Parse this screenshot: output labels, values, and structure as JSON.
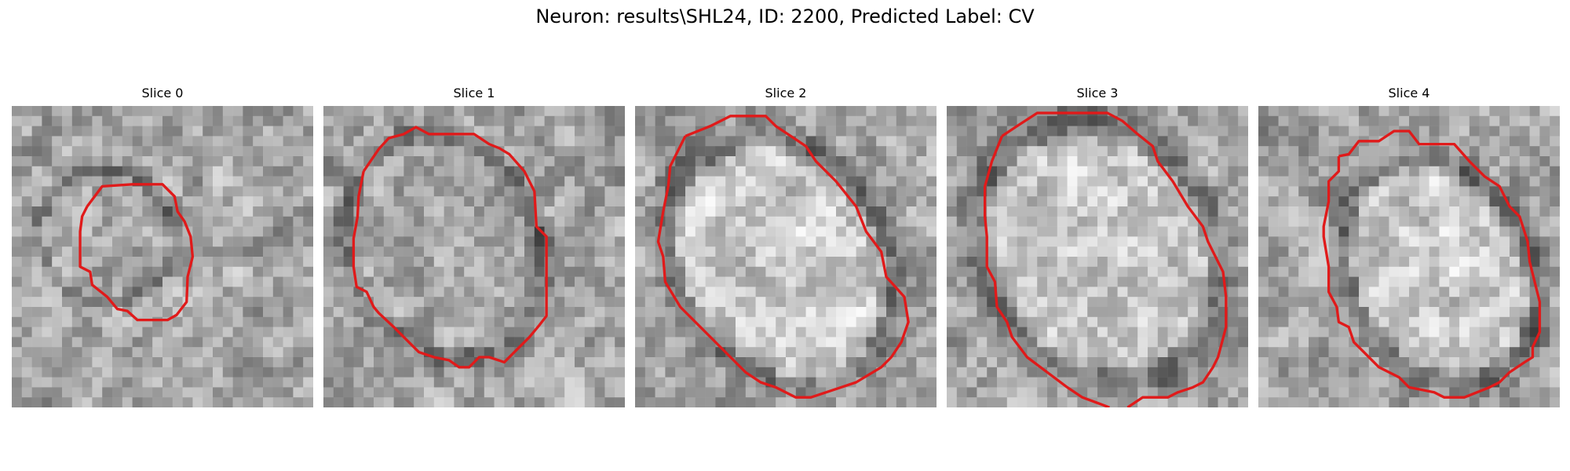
{
  "figure": {
    "title": "Neuron: results\\SHL24, ID: 2200, Predicted Label: CV"
  },
  "slices": [
    {
      "title": "Slice 0"
    },
    {
      "title": "Slice 1"
    },
    {
      "title": "Slice 2"
    },
    {
      "title": "Slice 3"
    },
    {
      "title": "Slice 4"
    }
  ],
  "colors": {
    "contour": "#e01a1a",
    "background": "#ffffff"
  }
}
